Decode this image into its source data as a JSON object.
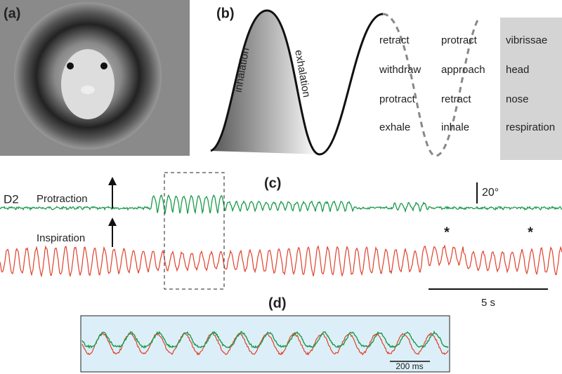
{
  "panels": {
    "a": {
      "label": "(a)"
    },
    "b": {
      "label": "(b)",
      "phase_labels": [
        "inhalation",
        "exhalation"
      ],
      "table": {
        "rows": [
          [
            "retract",
            "protract",
            "vibrissae"
          ],
          [
            "withdraw",
            "approach",
            "head"
          ],
          [
            "protract",
            "retract",
            "nose"
          ],
          [
            "exhale",
            "inhale",
            "respiration"
          ]
        ]
      }
    },
    "c": {
      "label": "(c)",
      "whisker": "D2",
      "traces": [
        "Protraction",
        "Inspiration"
      ],
      "scale_angle": "20°",
      "scale_time": "5 s",
      "markers": [
        "*",
        "*"
      ]
    },
    "d": {
      "label": "(d)",
      "scale_time": "200 ms"
    }
  }
}
